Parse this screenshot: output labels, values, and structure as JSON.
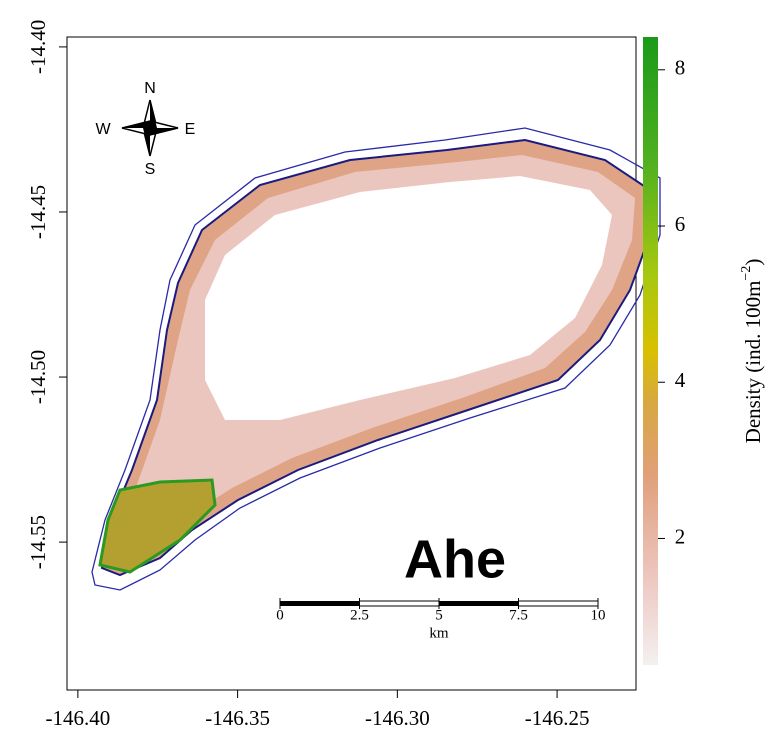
{
  "map": {
    "title": "Ahe",
    "xlim": [
      -146.4034,
      -146.2253
    ],
    "ylim": [
      -14.5948,
      -14.397
    ],
    "xticks": [
      {
        "value": -146.4,
        "label": "-146.40"
      },
      -146.35,
      {
        "value": -146.3,
        "label": "-146.30"
      },
      -146.25
    ],
    "yticks": [
      {
        "value": -14.4,
        "label": "-14.40"
      },
      -14.45,
      {
        "value": -14.5,
        "label": "-14.50"
      },
      -14.55
    ],
    "compass": {
      "north": "N",
      "east": "E",
      "south": "S",
      "west": "W"
    },
    "scale_bar": {
      "ticks": [
        0,
        2.5,
        5,
        7.5,
        10
      ],
      "unit": "km"
    },
    "colorbar": {
      "label": "Density (ind. 100m",
      "label_superscript": "−2",
      "label_end": ")",
      "lim": [
        0.38,
        8.42
      ],
      "ticks": [
        2,
        4,
        6,
        8
      ]
    }
  }
}
